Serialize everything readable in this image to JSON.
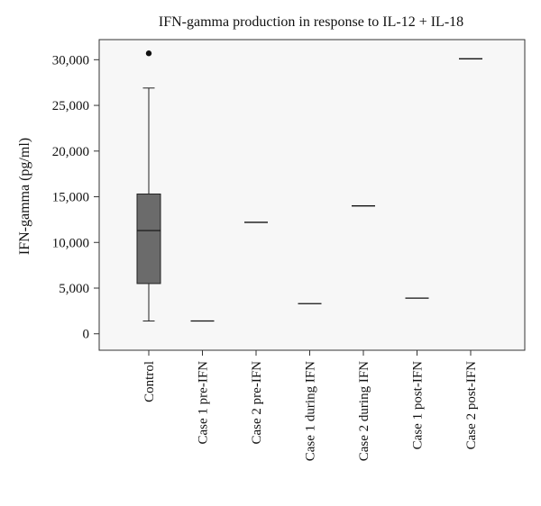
{
  "chart_data": {
    "type": "box",
    "title": "IFN-gamma production in response to IL-12 + IL-18",
    "xlabel": "",
    "ylabel": "IFN-gamma (pg/ml)",
    "ylim": [
      -1800,
      32200
    ],
    "yticks": [
      0,
      5000,
      10000,
      15000,
      20000,
      25000,
      30000
    ],
    "ytick_labels": [
      "0",
      "5,000",
      "10,000",
      "15,000",
      "20,000",
      "25,000",
      "30,000"
    ],
    "grid": false,
    "categories": [
      "Control",
      "Case 1 pre-IFN",
      "Case 2 pre-IFN",
      "Case 1 during IFN",
      "Case 2 during IFN",
      "Case 1 post-IFN",
      "Case 2 post-IFN"
    ],
    "boxes": [
      {
        "category": "Control",
        "whisker_low": 1400,
        "q1": 5500,
        "median": 11300,
        "q3": 15300,
        "whisker_high": 26900,
        "outliers": [
          30700
        ]
      }
    ],
    "values": [
      {
        "category": "Case 1 pre-IFN",
        "value": 1400
      },
      {
        "category": "Case 2 pre-IFN",
        "value": 12200
      },
      {
        "category": "Case 1 during IFN",
        "value": 3300
      },
      {
        "category": "Case 2 during IFN",
        "value": 14000
      },
      {
        "category": "Case 1 post-IFN",
        "value": 3900
      },
      {
        "category": "Case 2 post-IFN",
        "value": 30100
      }
    ],
    "colors": {
      "box_fill": "#6b6b6b",
      "line": "#222222",
      "plot_bg": "#f7f7f7"
    }
  }
}
